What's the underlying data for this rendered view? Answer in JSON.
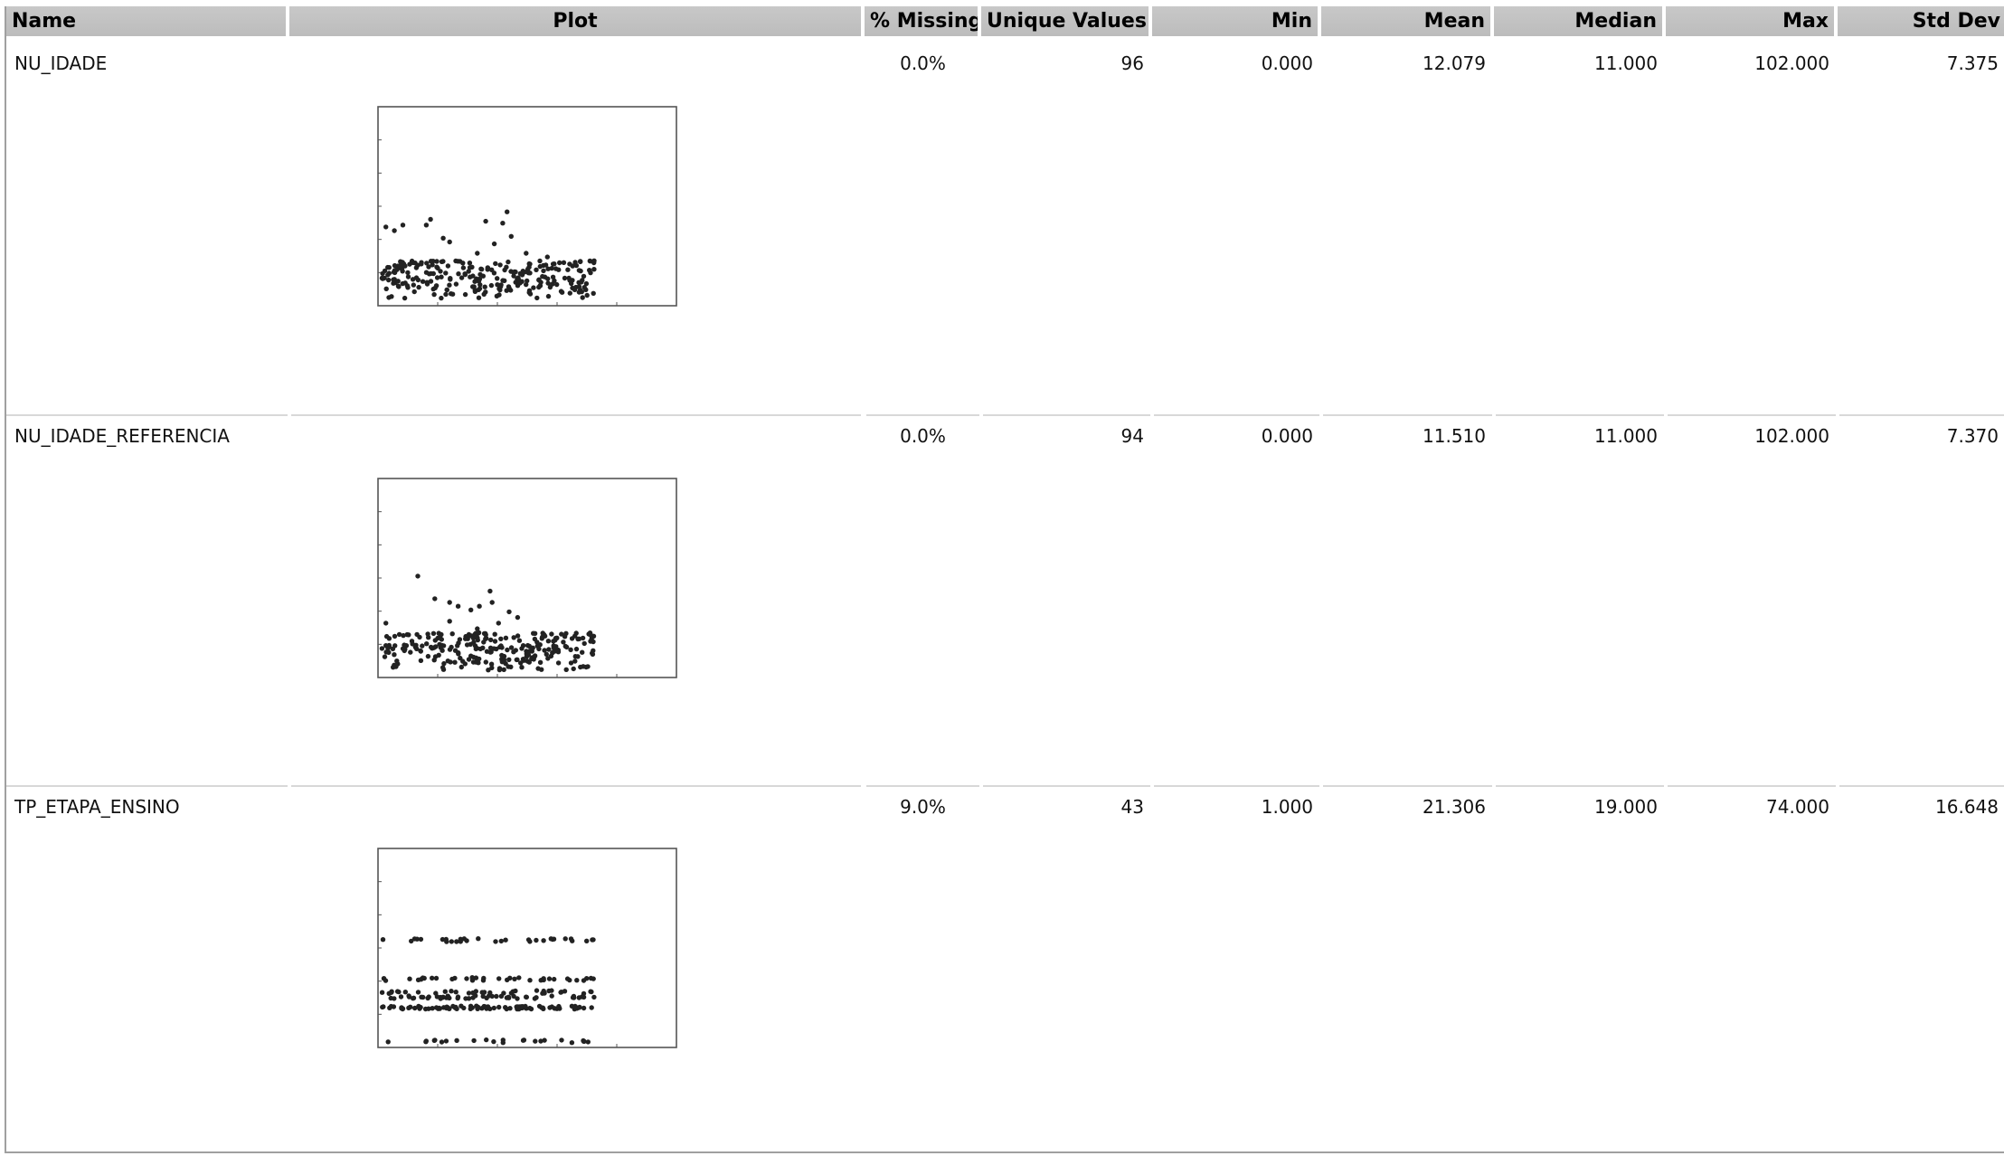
{
  "columns": {
    "name": "Name",
    "plot": "Plot",
    "missing": "% Missing",
    "unique": "Unique Values",
    "min": "Min",
    "mean": "Mean",
    "median": "Median",
    "max": "Max",
    "std": "Std Dev"
  },
  "rows": [
    {
      "name": "NU_IDADE",
      "missing": "0.0%",
      "unique": "96",
      "min": "0.000",
      "mean": "12.079",
      "median": "11.000",
      "max": "102.000",
      "std": "7.375"
    },
    {
      "name": "NU_IDADE_REFERENCIA",
      "missing": "0.0%",
      "unique": "94",
      "min": "0.000",
      "mean": "11.510",
      "median": "11.000",
      "max": "102.000",
      "std": "7.370"
    },
    {
      "name": "TP_ETAPA_ENSINO",
      "missing": "9.0%",
      "unique": "43",
      "min": "1.000",
      "mean": "21.306",
      "median": "19.000",
      "max": "74.000",
      "std": "16.648"
    }
  ],
  "chart_data": [
    {
      "type": "scatter",
      "variable": "NU_IDADE",
      "ylim": [
        0,
        102
      ],
      "points_shown": 260,
      "bulk_range": [
        0,
        20
      ],
      "outliers": [
        {
          "x": 0.02,
          "y": 40
        },
        {
          "x": 0.06,
          "y": 38
        },
        {
          "x": 0.1,
          "y": 41
        },
        {
          "x": 0.21,
          "y": 41
        },
        {
          "x": 0.23,
          "y": 44
        },
        {
          "x": 0.29,
          "y": 34
        },
        {
          "x": 0.32,
          "y": 32
        },
        {
          "x": 0.45,
          "y": 26
        },
        {
          "x": 0.49,
          "y": 43
        },
        {
          "x": 0.53,
          "y": 31
        },
        {
          "x": 0.57,
          "y": 42
        },
        {
          "x": 0.59,
          "y": 48
        },
        {
          "x": 0.61,
          "y": 35
        },
        {
          "x": 0.68,
          "y": 26
        },
        {
          "x": 0.78,
          "y": 24
        }
      ]
    },
    {
      "type": "scatter",
      "variable": "NU_IDADE_REFERENCIA",
      "ylim": [
        0,
        102
      ],
      "points_shown": 260,
      "bulk_range": [
        0,
        20
      ],
      "outliers": [
        {
          "x": 0.02,
          "y": 27
        },
        {
          "x": 0.17,
          "y": 52
        },
        {
          "x": 0.25,
          "y": 40
        },
        {
          "x": 0.32,
          "y": 38
        },
        {
          "x": 0.36,
          "y": 36
        },
        {
          "x": 0.42,
          "y": 34
        },
        {
          "x": 0.46,
          "y": 36
        },
        {
          "x": 0.51,
          "y": 44
        },
        {
          "x": 0.52,
          "y": 38
        },
        {
          "x": 0.6,
          "y": 33
        },
        {
          "x": 0.64,
          "y": 30
        },
        {
          "x": 0.32,
          "y": 28
        },
        {
          "x": 0.45,
          "y": 24
        },
        {
          "x": 0.55,
          "y": 27
        }
      ]
    },
    {
      "type": "scatter",
      "variable": "TP_ETAPA_ENSINO",
      "ylim": [
        0,
        74
      ],
      "points_shown": 260,
      "levels": [
        1,
        14,
        18,
        20,
        25,
        40
      ]
    }
  ]
}
